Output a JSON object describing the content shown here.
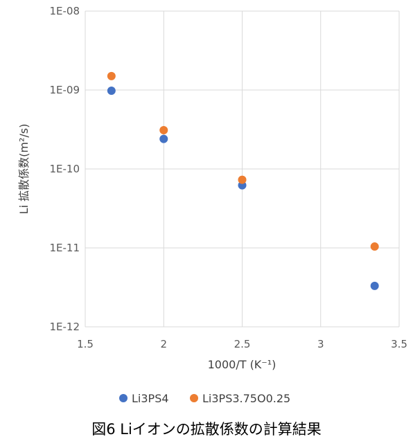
{
  "caption": "図6 Liイオンの拡散係数の計算結果",
  "chart_data": {
    "type": "scatter",
    "title": "",
    "xlabel": "1000/T (K⁻¹)",
    "ylabel": "Li 拡散係数(m²/s)",
    "xlim": [
      1.5,
      3.5
    ],
    "ylim": [
      1e-12,
      1e-08
    ],
    "y_scale": "log",
    "x_ticks": [
      1.5,
      2,
      2.5,
      3,
      3.5
    ],
    "x_tick_labels": [
      "1.5",
      "2",
      "2.5",
      "3",
      "3.5"
    ],
    "y_ticks": [
      1e-08,
      1e-09,
      1e-10,
      1e-11,
      1e-12
    ],
    "y_tick_labels": [
      "1E-08",
      "1E-09",
      "1E-10",
      "1E-11",
      "1E-12"
    ],
    "grid": true,
    "legend_position": "bottom",
    "series": [
      {
        "name": "Li3PS4",
        "color": "#4472C4",
        "x": [
          1.667,
          2.0,
          2.5,
          3.344
        ],
        "y": [
          9.8e-10,
          2.4e-10,
          6.2e-11,
          3.3e-12
        ]
      },
      {
        "name": "Li3PS3.75O0.25",
        "color": "#ED7D31",
        "x": [
          1.667,
          2.0,
          2.5,
          3.344
        ],
        "y": [
          1.5e-09,
          3.1e-10,
          7.3e-11,
          1.04e-11
        ]
      }
    ]
  }
}
